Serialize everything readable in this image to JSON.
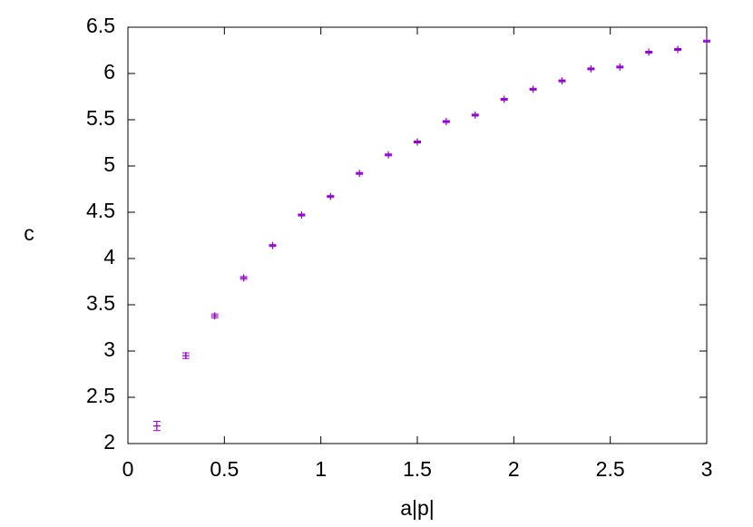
{
  "chart_data": {
    "type": "scatter",
    "xlabel": "a|p|",
    "ylabel": "c",
    "x": [
      0.15,
      0.3,
      0.45,
      0.6,
      0.75,
      0.9,
      1.05,
      1.2,
      1.35,
      1.5,
      1.65,
      1.8,
      1.95,
      2.1,
      2.25,
      2.4,
      2.55,
      2.7,
      2.85,
      3.0
    ],
    "series": [
      {
        "color": "#9400d3",
        "values": [
          2.19,
          2.95,
          3.38,
          3.79,
          4.14,
          4.47,
          4.67,
          4.92,
          5.12,
          5.26,
          5.48,
          5.55,
          5.72,
          5.83,
          5.92,
          6.05,
          6.07,
          6.23,
          6.26,
          6.35
        ],
        "errors": [
          0.05,
          0.03,
          0.02,
          0.015,
          0.01,
          0.01,
          0.01,
          0.01,
          0.01,
          0.01,
          0.01,
          0.01,
          0.01,
          0.01,
          0.01,
          0.01,
          0.01,
          0.01,
          0.01,
          0.01
        ]
      }
    ],
    "xlim": [
      0,
      3
    ],
    "ylim": [
      2,
      6.5
    ],
    "xticks": [
      0,
      0.5,
      1,
      1.5,
      2,
      2.5,
      3
    ],
    "yticks": [
      2,
      2.5,
      3,
      3.5,
      4,
      4.5,
      5,
      5.5,
      6,
      6.5
    ]
  }
}
